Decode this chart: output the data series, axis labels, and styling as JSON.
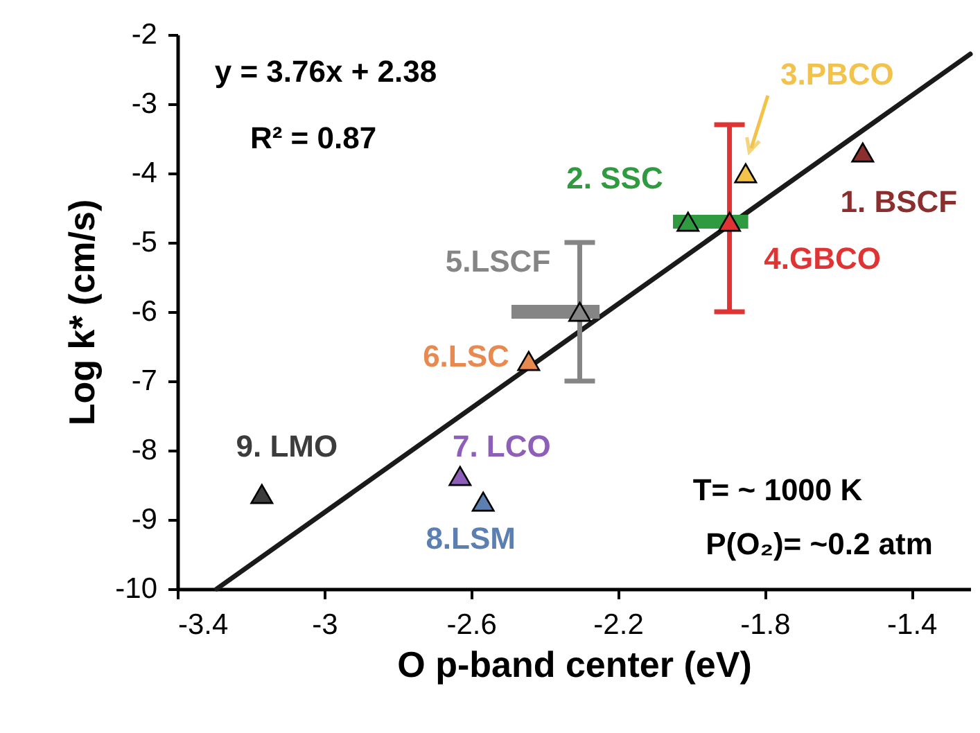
{
  "chart_data": {
    "type": "scatter",
    "xlabel": "O p-band center (eV)",
    "ylabel": "Log k* (cm/s)",
    "xlim": [
      -3.4,
      -1.24
    ],
    "ylim": [
      -10,
      -2
    ],
    "xticks": [
      -3.4,
      -3,
      -2.6,
      -2.2,
      -1.8,
      -1.4
    ],
    "yticks": [
      -10,
      -9,
      -8,
      -7,
      -6,
      -5,
      -4,
      -3,
      -2
    ],
    "grid": false,
    "marker": "triangle",
    "annotations": [
      "y = 3.76x + 2.38",
      "R² = 0.87",
      "T= ~ 1000 K",
      "P(O₂)= ~0.2 atm"
    ],
    "series": [
      {
        "type": "line",
        "color": "#1a1a1a",
        "line_style": "solid",
        "marker": "none",
        "x": [
          -3.293,
          -1.24
        ],
        "values": [
          -10,
          -2.28
        ]
      },
      {
        "name": "1. BSCF",
        "color": "#8b2e2e",
        "x": [
          -1.533
        ],
        "values": [
          -3.7
        ]
      },
      {
        "name": "2. SSC",
        "color": "#2f9a3f",
        "x": [
          -2.009
        ],
        "values": [
          -4.7
        ],
        "xerrors": [
          [
            -2.05,
            -1.845
          ]
        ]
      },
      {
        "name": "3.PBCO",
        "color": "#f2c24a",
        "x": [
          -1.852
        ],
        "values": [
          -4.0
        ]
      },
      {
        "name": "4.GBCO",
        "color": "#e03434",
        "x": [
          -1.896
        ],
        "values": [
          -4.7
        ],
        "errors": [
          [
            -6.0,
            -3.3
          ]
        ]
      },
      {
        "name": "5.LSCF",
        "color": "#858585",
        "x": [
          -2.304
        ],
        "values": [
          -6.0
        ],
        "errors": [
          [
            -7.0,
            -5.0
          ]
        ],
        "xerrors": [
          [
            -2.49,
            -2.25
          ]
        ]
      },
      {
        "name": "6.LSC",
        "color": "#e8894f",
        "x": [
          -2.443
        ],
        "values": [
          -6.71
        ]
      },
      {
        "name": "7. LCO",
        "color": "#8e5fb8",
        "x": [
          -2.63
        ],
        "values": [
          -8.37
        ]
      },
      {
        "name": "8.LSM",
        "color": "#5b7fb0",
        "x": [
          -2.567
        ],
        "values": [
          -8.74
        ]
      },
      {
        "name": "9. LMO",
        "color": "#3c3c3c",
        "x": [
          -3.17
        ],
        "values": [
          -8.63
        ]
      }
    ]
  }
}
